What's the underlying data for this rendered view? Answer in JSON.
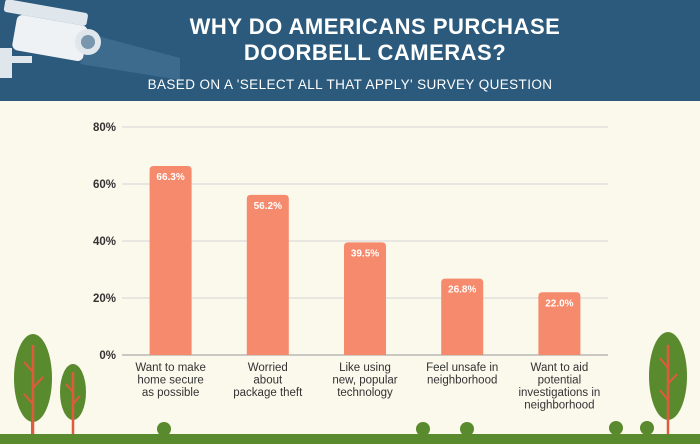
{
  "header": {
    "title_line1": "WHY DO AMERICANS PURCHASE",
    "title_line2": "DOORBELL CAMERAS?",
    "subtitle": "BASED ON A 'SELECT ALL THAT APPLY' SURVEY QUESTION"
  },
  "colors": {
    "header": "#2b5a7d",
    "bar": "#f58a6c",
    "background": "#fbf8ec",
    "grid": "#d4d4d4",
    "ground": "#5a8a2e"
  },
  "chart_data": {
    "type": "bar",
    "title": "",
    "xlabel": "",
    "ylabel": "",
    "ylim": [
      0,
      80
    ],
    "yticks": [
      0,
      20,
      40,
      60,
      80
    ],
    "ytick_labels": [
      "0%",
      "20%",
      "40%",
      "60%",
      "80%"
    ],
    "grid": true,
    "categories": [
      [
        "Want to make",
        "home secure",
        "as possible"
      ],
      [
        "Worried",
        "about",
        "package theft"
      ],
      [
        "Like using",
        "new, popular",
        "technology"
      ],
      [
        "Feel unsafe in",
        "neighborhood"
      ],
      [
        "Want to aid",
        "potential",
        "investigations in",
        "neighborhood"
      ]
    ],
    "values": [
      66.3,
      56.2,
      39.5,
      26.8,
      22.0
    ],
    "data_labels": [
      "66.3%",
      "56.2%",
      "39.5%",
      "26.8%",
      "22.0%"
    ]
  }
}
